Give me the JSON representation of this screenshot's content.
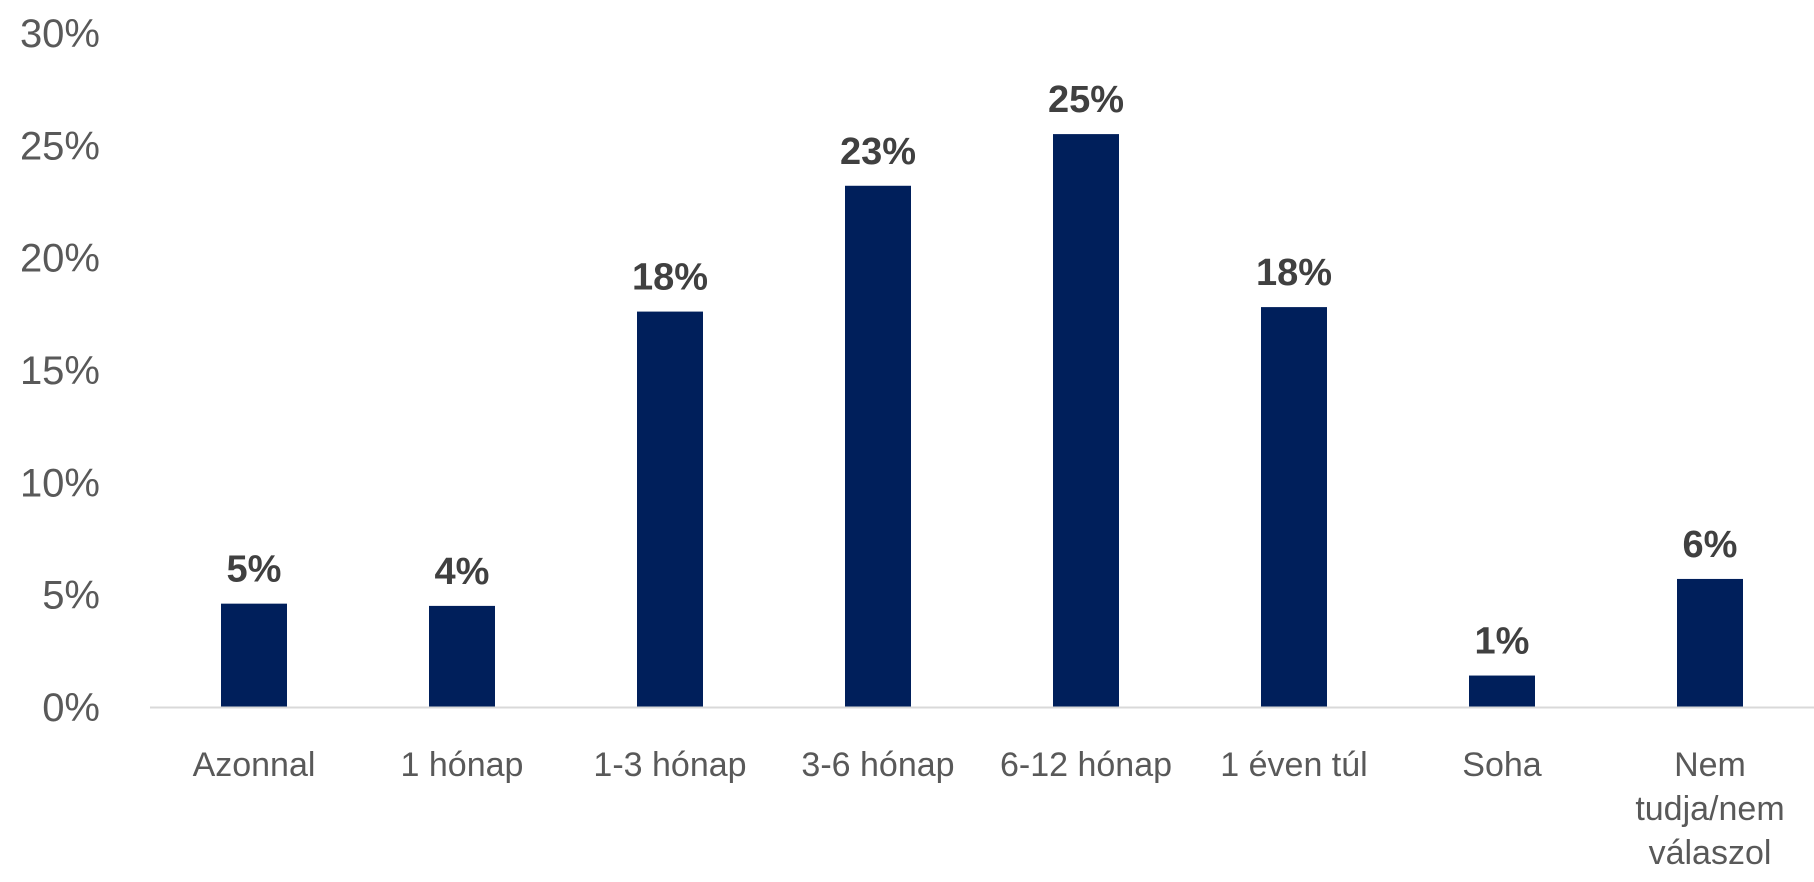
{
  "chart_data": {
    "type": "bar",
    "categories": [
      "Azonnal",
      "1 hónap",
      "1-3 hónap",
      "3-6 hónap",
      "6-12 hónap",
      "1 éven túl",
      "Soha",
      "Nem tudja/nem válaszol"
    ],
    "category_lines": [
      [
        "Azonnal"
      ],
      [
        "1 hónap"
      ],
      [
        "1-3 hónap"
      ],
      [
        "3-6 hónap"
      ],
      [
        "6-12 hónap"
      ],
      [
        "1 éven túl"
      ],
      [
        "Soha"
      ],
      [
        "Nem",
        "tudja/nem",
        "válaszol"
      ]
    ],
    "values": [
      4.6,
      4.5,
      17.6,
      23.2,
      25.5,
      17.8,
      1.4,
      5.7
    ],
    "value_labels": [
      "5%",
      "4%",
      "18%",
      "23%",
      "25%",
      "18%",
      "1%",
      "6%"
    ],
    "y_ticks": [
      0,
      5,
      10,
      15,
      20,
      25,
      30
    ],
    "y_tick_labels": [
      "0%",
      "5%",
      "10%",
      "15%",
      "20%",
      "25%",
      "30%"
    ],
    "ylim": [
      0,
      30
    ],
    "title": "",
    "xlabel": "",
    "ylabel": "",
    "grid": false,
    "legend": "none",
    "bar_color": "#001f5b",
    "axis_color": "#d9d9d9"
  }
}
